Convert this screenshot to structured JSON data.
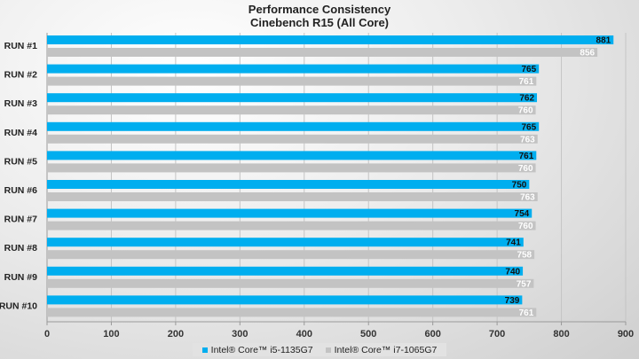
{
  "chart_data": {
    "type": "bar",
    "orientation": "horizontal",
    "title": "Performance Consistency",
    "subtitle": "Cinebench R15 (All Core)",
    "categories": [
      "RUN #1",
      "RUN #2",
      "RUN #3",
      "RUN #4",
      "RUN #5",
      "RUN #6",
      "RUN #7",
      "RUN #8",
      "RUN #9",
      "RUN #10"
    ],
    "series": [
      {
        "name": "Intel® Core™ i5-1135G7",
        "color": "#00aeef",
        "label_color": "#111111",
        "values": [
          881,
          765,
          762,
          765,
          761,
          750,
          754,
          741,
          740,
          739
        ]
      },
      {
        "name": "Intel® Core™ i7-1065G7",
        "color": "#c3c3c3",
        "label_color": "#ffffff",
        "values": [
          856,
          761,
          760,
          763,
          760,
          763,
          760,
          758,
          757,
          761
        ]
      }
    ],
    "xlim": [
      0,
      900
    ],
    "xticks": [
      0,
      100,
      200,
      300,
      400,
      500,
      600,
      700,
      800,
      900
    ],
    "grid": true,
    "legend_position": "bottom"
  }
}
